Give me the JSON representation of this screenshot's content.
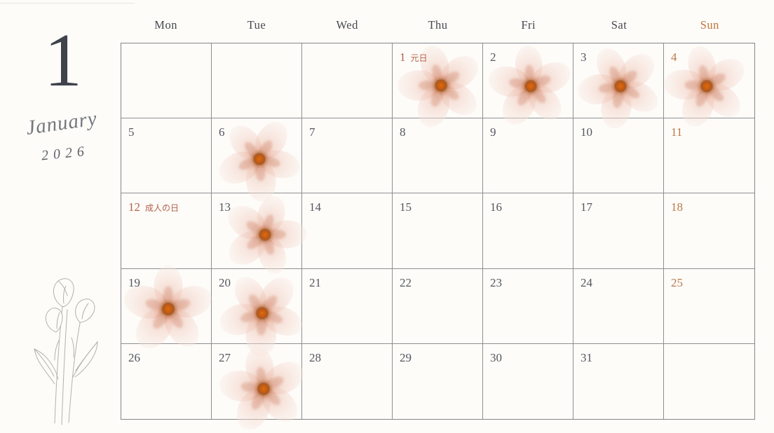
{
  "sidebar": {
    "month_number": "1",
    "month_name": "January",
    "year": "2026"
  },
  "weekdays": [
    {
      "label": "Mon",
      "accent": false
    },
    {
      "label": "Tue",
      "accent": false
    },
    {
      "label": "Wed",
      "accent": false
    },
    {
      "label": "Thu",
      "accent": false
    },
    {
      "label": "Fri",
      "accent": false
    },
    {
      "label": "Sat",
      "accent": false
    },
    {
      "label": "Sun",
      "accent": true
    }
  ],
  "calendar": {
    "month": "January 2026",
    "cells": [
      {
        "date": "",
        "type": "empty",
        "flower": false
      },
      {
        "date": "",
        "type": "empty",
        "flower": false
      },
      {
        "date": "",
        "type": "empty",
        "flower": false
      },
      {
        "date": "1",
        "type": "holiday",
        "holiday": "元日",
        "flower": true
      },
      {
        "date": "2",
        "type": "normal",
        "flower": true
      },
      {
        "date": "3",
        "type": "normal",
        "flower": true
      },
      {
        "date": "4",
        "type": "sunday",
        "flower": true
      },
      {
        "date": "5",
        "type": "normal",
        "flower": false
      },
      {
        "date": "6",
        "type": "normal",
        "flower": true
      },
      {
        "date": "7",
        "type": "normal",
        "flower": false
      },
      {
        "date": "8",
        "type": "normal",
        "flower": false
      },
      {
        "date": "9",
        "type": "normal",
        "flower": false
      },
      {
        "date": "10",
        "type": "normal",
        "flower": false
      },
      {
        "date": "11",
        "type": "sunday",
        "flower": false
      },
      {
        "date": "12",
        "type": "holiday",
        "holiday": "成人の日",
        "flower": false
      },
      {
        "date": "13",
        "type": "normal",
        "flower": true
      },
      {
        "date": "14",
        "type": "normal",
        "flower": false
      },
      {
        "date": "15",
        "type": "normal",
        "flower": false
      },
      {
        "date": "16",
        "type": "normal",
        "flower": false
      },
      {
        "date": "17",
        "type": "normal",
        "flower": false
      },
      {
        "date": "18",
        "type": "sunday",
        "flower": false
      },
      {
        "date": "19",
        "type": "normal",
        "flower": true
      },
      {
        "date": "20",
        "type": "normal",
        "flower": true
      },
      {
        "date": "21",
        "type": "normal",
        "flower": false
      },
      {
        "date": "22",
        "type": "normal",
        "flower": false
      },
      {
        "date": "23",
        "type": "normal",
        "flower": false
      },
      {
        "date": "24",
        "type": "normal",
        "flower": false
      },
      {
        "date": "25",
        "type": "sunday",
        "flower": false
      },
      {
        "date": "26",
        "type": "normal",
        "flower": false
      },
      {
        "date": "27",
        "type": "normal",
        "flower": true
      },
      {
        "date": "28",
        "type": "normal",
        "flower": false
      },
      {
        "date": "29",
        "type": "normal",
        "flower": false
      },
      {
        "date": "30",
        "type": "normal",
        "flower": false
      },
      {
        "date": "31",
        "type": "normal",
        "flower": false
      },
      {
        "date": "",
        "type": "empty",
        "flower": false
      }
    ]
  },
  "colors": {
    "background": "#fdfcf9",
    "date_text": "#55575e",
    "weekday_text": "#46484f",
    "sunday_accent": "#bf7848",
    "holiday_accent": "#b4604a",
    "grid_line": "#8f8f8f",
    "flower_center": "#c45a12",
    "petal_pink": "#f3d9d0",
    "sketch_line": "#b3b1ae"
  },
  "icons": {
    "flower": "watercolor-flower-icon",
    "sketch": "calla-lily-sketch-icon"
  }
}
